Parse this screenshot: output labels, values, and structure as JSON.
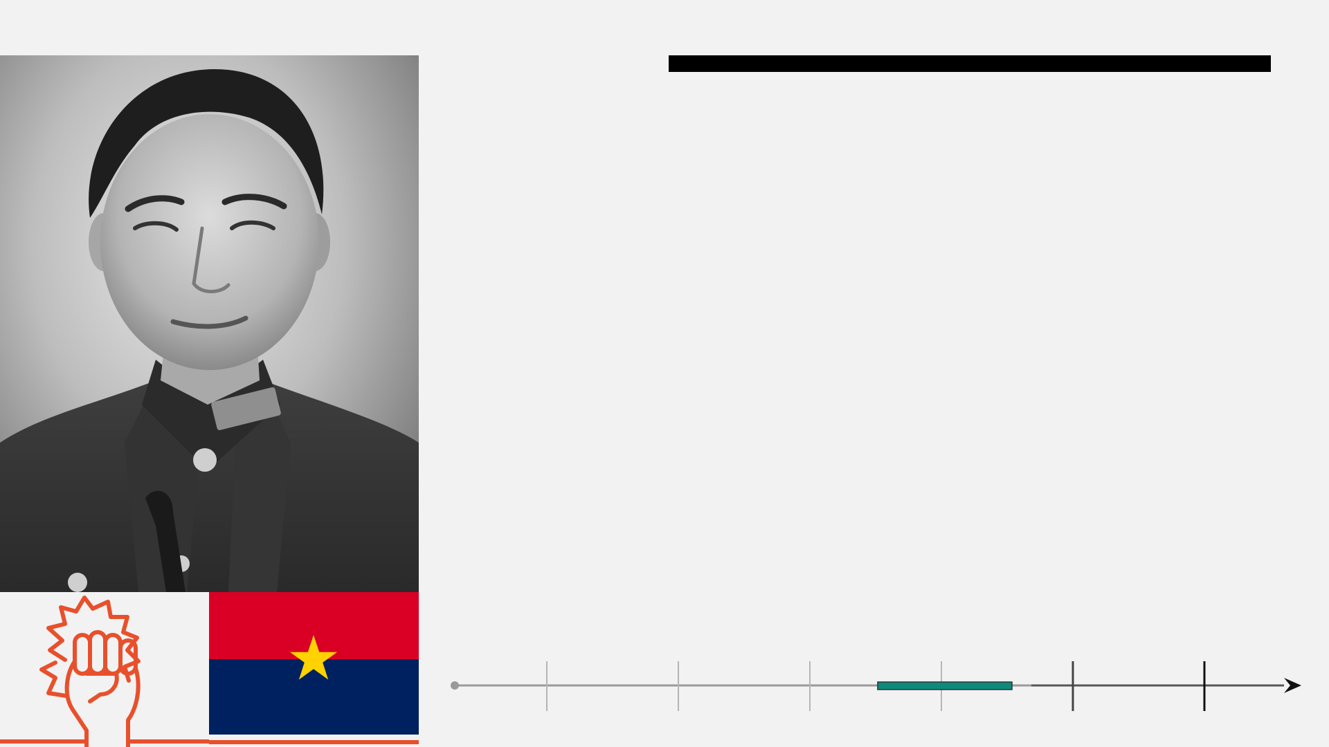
{
  "colors": {
    "background": "#f2f2f2",
    "title_bar": "#000000",
    "accent_orange": "#e8502c",
    "flag_red": "#da0025",
    "flag_blue": "#00215f",
    "flag_star": "#ffd200",
    "timeline_highlight": "#0e8a7d",
    "timeline_line": "#9a9a9a"
  },
  "portrait": {
    "icon": "portrait-photo-icon"
  },
  "fist_panel": {
    "icon": "raised-fist-icon"
  },
  "flag": {
    "icon": "flag-star-icon"
  },
  "timeline": {
    "tick_count": 6,
    "highlight_start_fraction": 0.51,
    "highlight_end_fraction": 0.672
  }
}
